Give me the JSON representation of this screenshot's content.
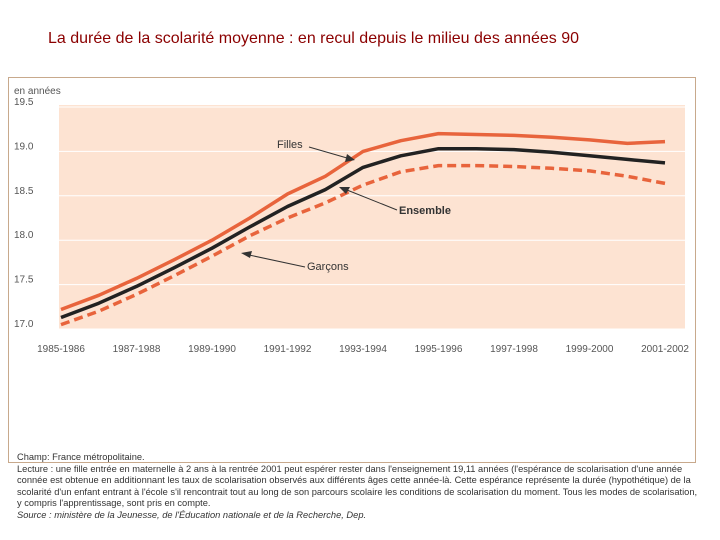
{
  "slide": {
    "title": "La durée de la scolarité moyenne : en recul depuis le milieu des années 90"
  },
  "chart_data": {
    "type": "line",
    "title": "La durée de la scolarité moyenne : en recul depuis le milieu des années 90",
    "ylabel": "en années",
    "xlabel": "",
    "ylim": [
      17.0,
      19.5
    ],
    "yticks": [
      "17.0",
      "17.5",
      "18.0",
      "18.5",
      "19.0",
      "19.5"
    ],
    "x": [
      "1985-1986",
      "1986-1987",
      "1987-1988",
      "1988-1989",
      "1989-1990",
      "1990-1991",
      "1991-1992",
      "1992-1993",
      "1993-1994",
      "1994-1995",
      "1995-1996",
      "1996-1997",
      "1997-1998",
      "1998-1999",
      "1999-2000",
      "2000-2001",
      "2001-2002"
    ],
    "xtick_labels": [
      "1985-1986",
      "1987-1988",
      "1989-1990",
      "1991-1992",
      "1993-1994",
      "1995-1996",
      "1997-1998",
      "1999-2000",
      "2001-2002"
    ],
    "series": [
      {
        "name": "Filles",
        "color": "#e8643c",
        "style": "solid",
        "values": [
          17.22,
          17.38,
          17.57,
          17.78,
          18.0,
          18.25,
          18.52,
          18.72,
          19.0,
          19.12,
          19.2,
          19.19,
          19.18,
          19.16,
          19.13,
          19.09,
          19.11
        ]
      },
      {
        "name": "Ensemble",
        "color": "#222222",
        "style": "solid",
        "values": [
          17.13,
          17.29,
          17.48,
          17.69,
          17.91,
          18.15,
          18.38,
          18.57,
          18.82,
          18.95,
          19.03,
          19.03,
          19.02,
          18.99,
          18.95,
          18.91,
          18.87
        ]
      },
      {
        "name": "Garçons",
        "color": "#e8643c",
        "style": "dashed",
        "values": [
          17.05,
          17.2,
          17.39,
          17.6,
          17.82,
          18.05,
          18.25,
          18.42,
          18.62,
          18.77,
          18.84,
          18.84,
          18.83,
          18.81,
          18.78,
          18.72,
          18.64
        ]
      }
    ],
    "annotations": [
      "Filles",
      "Ensemble",
      "Garçons"
    ],
    "grid": "horizontal",
    "background": "#fde3d2"
  },
  "notes": {
    "lines": [
      "Champ: France métropolitaine.",
      "Lecture : une fille entrée en maternelle à 2 ans à la rentrée 2001 peut espérer rester dans l'enseignement 19,11 années (l'espérance de scolarisation d'une année",
      "connée est obtenue en additionnant les taux de scolarisation observés aux différents âges cette année-là. Cette espérance représente la durée (hypothétique) de la",
      "scolarité d'un enfant entrant à l'école s'il rencontrait tout au long de son parcours scolaire les conditions de scolarisation du moment. Tous les modes de scolarisation,",
      "y compris l'apprentissage, sont pris en compte."
    ],
    "source": "Source : ministère de la Jeunesse, de l'Éducation nationale et de la Recherche, Dep."
  }
}
